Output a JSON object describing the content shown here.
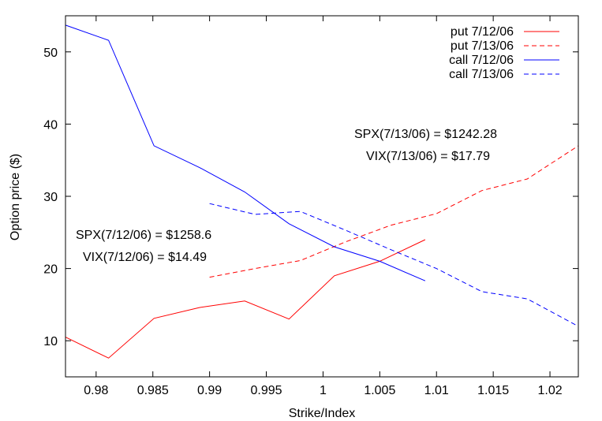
{
  "chart_data": {
    "type": "line",
    "xlabel": "Strike/Index",
    "ylabel": "Option price ($)",
    "xlim": [
      0.9773,
      1.0225
    ],
    "ylim": [
      5,
      55
    ],
    "x_ticks": [
      0.98,
      0.985,
      0.99,
      0.995,
      1,
      1.005,
      1.01,
      1.015,
      1.02
    ],
    "x_tick_labels": [
      "0.98",
      "0.985",
      "0.99",
      "0.995",
      "1",
      "1.005",
      "1.01",
      "1.015",
      "1.02"
    ],
    "y_ticks": [
      10,
      20,
      30,
      40,
      50
    ],
    "y_tick_labels": [
      "10",
      "20",
      "30",
      "40",
      "50"
    ],
    "grid": false,
    "legend_position": "top-right",
    "series": [
      {
        "name": "put 7/12/06",
        "color": "#ff0000",
        "dash": "solid",
        "x": [
          0.9773,
          0.9811,
          0.9851,
          0.9891,
          0.9931,
          0.997,
          1.001,
          1.005,
          1.009
        ],
        "y": [
          10.5,
          7.6,
          13.1,
          14.6,
          15.5,
          13.0,
          19.0,
          21.0,
          24.0
        ]
      },
      {
        "name": "put 7/13/06",
        "color": "#ff0000",
        "dash": "dashed",
        "x": [
          0.99,
          0.994,
          0.998,
          1.002,
          1.006,
          1.01,
          1.014,
          1.018,
          1.0225
        ],
        "y": [
          18.8,
          20.0,
          21.1,
          23.7,
          26.0,
          27.6,
          30.8,
          32.4,
          37.0
        ]
      },
      {
        "name": "call 7/12/06",
        "color": "#0000ff",
        "dash": "solid",
        "x": [
          0.9773,
          0.9811,
          0.9851,
          0.9891,
          0.9931,
          0.997,
          1.001,
          1.005,
          1.009
        ],
        "y": [
          53.7,
          51.6,
          37.0,
          34.0,
          30.6,
          26.2,
          23.0,
          21.0,
          18.3
        ]
      },
      {
        "name": "call 7/13/06",
        "color": "#0000ff",
        "dash": "dashed",
        "x": [
          0.99,
          0.994,
          0.998,
          1.002,
          1.006,
          1.01,
          1.014,
          1.018,
          1.0225
        ],
        "y": [
          29.0,
          27.5,
          27.9,
          25.3,
          22.6,
          20.0,
          16.8,
          15.8,
          12.0
        ]
      }
    ],
    "annotations": [
      {
        "id": "spx-0713",
        "text": "SPX(7/13/06) = $1242.28"
      },
      {
        "id": "vix-0713",
        "text": "VIX(7/13/06) = $17.79"
      },
      {
        "id": "spx-0712",
        "text": "SPX(7/12/06) = $1258.6"
      },
      {
        "id": "vix-0712",
        "text": "VIX(7/12/06) = $14.49"
      }
    ]
  }
}
